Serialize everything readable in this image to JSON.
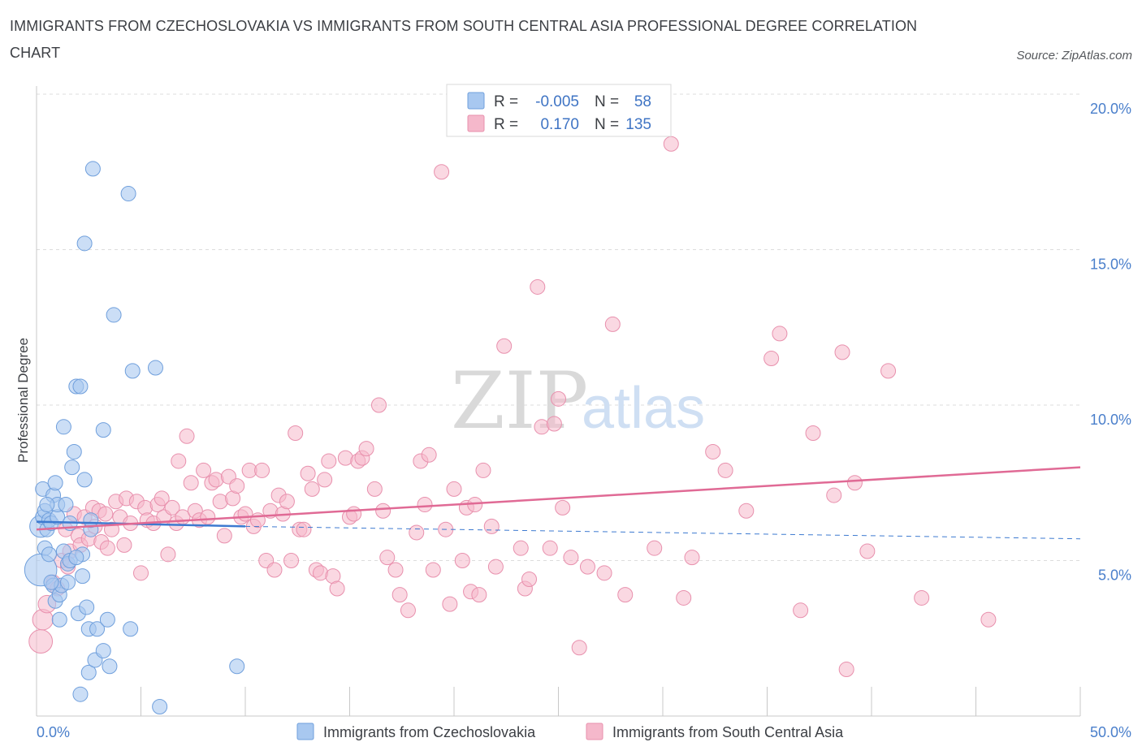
{
  "header": {
    "title": "IMMIGRANTS FROM CZECHOSLOVAKIA VS IMMIGRANTS FROM SOUTH CENTRAL ASIA PROFESSIONAL DEGREE CORRELATION CHART",
    "source": "Source: ZipAtlas.com"
  },
  "watermark": {
    "zip": "ZIP",
    "atlas": "atlas"
  },
  "legend": {
    "rows": [
      {
        "r_label": "R =",
        "r_value": "-0.005",
        "n_label": "N =",
        "n_value": "58",
        "color": "#a8c8f0",
        "stroke": "#6f9fdc"
      },
      {
        "r_label": "R =",
        "r_value": "0.170",
        "n_label": "N =",
        "n_value": "135",
        "color": "#f5b8cb",
        "stroke": "#e890ad"
      }
    ]
  },
  "colors": {
    "blue_fill": "#a8c8f0",
    "blue_stroke": "#6f9fdc",
    "blue_line": "#3d7ad0",
    "pink_fill": "#f5b8cb",
    "pink_stroke": "#e890ad",
    "pink_line": "#e06a95",
    "grid": "#dcdcdc",
    "tick_label": "#4a7fcb"
  },
  "chart_data": {
    "type": "scatter",
    "title": "IMMIGRANTS FROM CZECHOSLOVAKIA VS IMMIGRANTS FROM SOUTH CENTRAL ASIA PROFESSIONAL DEGREE CORRELATION CHART",
    "xlabel": "",
    "ylabel": "Professional Degree",
    "xlim": [
      0,
      50
    ],
    "ylim": [
      0,
      20
    ],
    "x_tick_labels": [
      {
        "value": 0,
        "label": "0.0%"
      },
      {
        "value": 50,
        "label": "50.0%"
      }
    ],
    "x_minor_ticks": [
      5,
      10,
      15,
      20,
      25,
      30,
      35,
      40,
      45,
      50
    ],
    "y_ticks": [
      {
        "value": 5,
        "label": "5.0%"
      },
      {
        "value": 10,
        "label": "10.0%"
      },
      {
        "value": 15,
        "label": "15.0%"
      },
      {
        "value": 20,
        "label": "20.0%"
      }
    ],
    "grid": true,
    "legend_position": "top-center",
    "series": [
      {
        "name": "Immigrants from Czechoslovakia",
        "color": "#a8c8f0",
        "trend": {
          "x": [
            0,
            10
          ],
          "y": [
            6.25,
            6.1
          ],
          "dashed_to": [
            50,
            5.7
          ]
        },
        "points": [
          [
            0.2,
            4.7,
            2.2
          ],
          [
            0.2,
            6.1,
            1.5
          ],
          [
            0.3,
            6.4,
            1
          ],
          [
            0.3,
            7.3,
            1
          ],
          [
            0.4,
            6.6,
            1
          ],
          [
            0.4,
            5.4,
            1
          ],
          [
            0.5,
            6.0,
            1
          ],
          [
            0.6,
            6.3,
            1
          ],
          [
            0.6,
            5.2,
            1
          ],
          [
            0.7,
            6.2,
            1
          ],
          [
            0.8,
            7.1,
            1
          ],
          [
            0.8,
            4.2,
            1
          ],
          [
            0.9,
            7.5,
            1
          ],
          [
            0.9,
            3.7,
            1
          ],
          [
            1.0,
            6.4,
            1
          ],
          [
            1.0,
            6.8,
            1
          ],
          [
            1.1,
            3.1,
            1
          ],
          [
            1.1,
            3.9,
            1
          ],
          [
            1.2,
            4.2,
            1
          ],
          [
            1.3,
            5.3,
            1
          ],
          [
            1.3,
            9.3,
            1
          ],
          [
            1.4,
            6.8,
            1
          ],
          [
            1.5,
            4.9,
            1
          ],
          [
            1.5,
            4.3,
            1
          ],
          [
            1.6,
            5.0,
            1
          ],
          [
            1.7,
            8.0,
            1
          ],
          [
            1.8,
            8.5,
            1
          ],
          [
            1.9,
            10.6,
            1
          ],
          [
            2.0,
            3.3,
            1
          ],
          [
            2.1,
            0.7,
            1
          ],
          [
            2.1,
            10.6,
            1
          ],
          [
            2.2,
            5.2,
            1
          ],
          [
            2.2,
            4.5,
            1
          ],
          [
            2.3,
            15.2,
            1
          ],
          [
            2.3,
            7.6,
            1
          ],
          [
            2.4,
            3.5,
            1
          ],
          [
            2.5,
            1.4,
            1
          ],
          [
            2.5,
            2.8,
            1
          ],
          [
            2.6,
            6.0,
            1
          ],
          [
            2.6,
            6.3,
            1
          ],
          [
            2.7,
            17.6,
            1
          ],
          [
            2.8,
            1.8,
            1
          ],
          [
            2.9,
            2.8,
            1
          ],
          [
            3.2,
            9.2,
            1
          ],
          [
            3.2,
            2.1,
            1
          ],
          [
            3.4,
            3.1,
            1
          ],
          [
            3.5,
            1.6,
            1
          ],
          [
            3.7,
            12.9,
            1
          ],
          [
            4.4,
            16.8,
            1
          ],
          [
            4.5,
            2.8,
            1
          ],
          [
            4.6,
            11.1,
            1
          ],
          [
            5.7,
            11.2,
            1
          ],
          [
            5.9,
            0.3,
            1
          ],
          [
            9.6,
            1.6,
            1
          ],
          [
            0.5,
            6.8,
            1
          ],
          [
            0.7,
            4.3,
            1
          ],
          [
            1.6,
            6.2,
            1
          ],
          [
            1.9,
            5.1,
            1
          ]
        ]
      },
      {
        "name": "Immigrants from South Central Asia",
        "color": "#f5b8cb",
        "trend": {
          "x": [
            0,
            50
          ],
          "y": [
            6.0,
            8.0
          ]
        },
        "points": [
          [
            0.2,
            2.4,
            1.6
          ],
          [
            0.3,
            3.1,
            1.4
          ],
          [
            0.5,
            3.6,
            1.2
          ],
          [
            0.8,
            4.3,
            1
          ],
          [
            1.0,
            4.1,
            1
          ],
          [
            1.2,
            5.0,
            1
          ],
          [
            1.4,
            6.0,
            1
          ],
          [
            1.5,
            4.8,
            1
          ],
          [
            1.6,
            5.3,
            1
          ],
          [
            1.8,
            6.5,
            1
          ],
          [
            2.0,
            5.8,
            1
          ],
          [
            2.1,
            5.5,
            1
          ],
          [
            2.3,
            6.4,
            1
          ],
          [
            2.5,
            5.7,
            1
          ],
          [
            2.7,
            6.7,
            1
          ],
          [
            2.8,
            6.1,
            1
          ],
          [
            3.0,
            6.6,
            1
          ],
          [
            3.1,
            5.6,
            1
          ],
          [
            3.3,
            6.5,
            1
          ],
          [
            3.4,
            5.4,
            1
          ],
          [
            3.6,
            6.0,
            1
          ],
          [
            3.8,
            6.9,
            1
          ],
          [
            4.0,
            6.4,
            1
          ],
          [
            4.2,
            5.5,
            1
          ],
          [
            4.3,
            7.0,
            1
          ],
          [
            4.5,
            6.2,
            1
          ],
          [
            4.8,
            6.9,
            1
          ],
          [
            5.0,
            4.6,
            1
          ],
          [
            5.2,
            6.7,
            1
          ],
          [
            5.3,
            6.3,
            1
          ],
          [
            5.6,
            6.2,
            1
          ],
          [
            5.8,
            6.8,
            1
          ],
          [
            6.0,
            7.0,
            1
          ],
          [
            6.1,
            6.4,
            1
          ],
          [
            6.3,
            5.2,
            1
          ],
          [
            6.5,
            6.7,
            1
          ],
          [
            6.7,
            6.2,
            1
          ],
          [
            6.8,
            8.2,
            1
          ],
          [
            7.0,
            6.4,
            1
          ],
          [
            7.2,
            9.0,
            1
          ],
          [
            7.4,
            7.5,
            1
          ],
          [
            7.6,
            6.6,
            1
          ],
          [
            7.8,
            6.3,
            1
          ],
          [
            8.0,
            7.9,
            1
          ],
          [
            8.2,
            6.4,
            1
          ],
          [
            8.4,
            7.5,
            1
          ],
          [
            8.6,
            7.6,
            1
          ],
          [
            8.8,
            6.9,
            1
          ],
          [
            9.0,
            5.8,
            1
          ],
          [
            9.2,
            7.7,
            1
          ],
          [
            9.4,
            7.0,
            1
          ],
          [
            9.6,
            7.4,
            1
          ],
          [
            9.8,
            6.4,
            1
          ],
          [
            10.0,
            6.5,
            1
          ],
          [
            10.2,
            7.9,
            1
          ],
          [
            10.4,
            6.1,
            1
          ],
          [
            10.6,
            6.3,
            1
          ],
          [
            10.8,
            7.9,
            1
          ],
          [
            11.0,
            5.0,
            1
          ],
          [
            11.2,
            6.6,
            1
          ],
          [
            11.4,
            4.7,
            1
          ],
          [
            11.6,
            7.1,
            1
          ],
          [
            11.8,
            6.5,
            1
          ],
          [
            12.0,
            6.9,
            1
          ],
          [
            12.2,
            5.0,
            1
          ],
          [
            12.4,
            9.1,
            1
          ],
          [
            12.6,
            6.0,
            1
          ],
          [
            12.8,
            6.0,
            1
          ],
          [
            13.0,
            7.8,
            1
          ],
          [
            13.2,
            7.3,
            1
          ],
          [
            13.4,
            4.7,
            1
          ],
          [
            13.6,
            4.6,
            1
          ],
          [
            13.8,
            7.6,
            1
          ],
          [
            14.0,
            8.2,
            1
          ],
          [
            14.2,
            4.5,
            1
          ],
          [
            14.4,
            4.1,
            1
          ],
          [
            14.8,
            8.3,
            1
          ],
          [
            15.0,
            6.4,
            1
          ],
          [
            15.2,
            6.5,
            1
          ],
          [
            15.4,
            8.2,
            1
          ],
          [
            15.6,
            8.3,
            1
          ],
          [
            15.8,
            8.6,
            1
          ],
          [
            16.2,
            7.3,
            1
          ],
          [
            16.4,
            10.0,
            1
          ],
          [
            16.6,
            6.6,
            1
          ],
          [
            16.8,
            5.1,
            1
          ],
          [
            17.2,
            4.7,
            1
          ],
          [
            17.4,
            3.9,
            1
          ],
          [
            17.8,
            3.4,
            1
          ],
          [
            18.2,
            5.9,
            1
          ],
          [
            18.4,
            8.2,
            1
          ],
          [
            18.6,
            6.8,
            1
          ],
          [
            18.8,
            8.4,
            1
          ],
          [
            19.0,
            4.7,
            1
          ],
          [
            19.4,
            17.5,
            1
          ],
          [
            19.6,
            6.0,
            1
          ],
          [
            19.8,
            3.6,
            1
          ],
          [
            20.0,
            7.3,
            1
          ],
          [
            20.4,
            5.0,
            1
          ],
          [
            20.6,
            6.7,
            1
          ],
          [
            20.8,
            4.0,
            1
          ],
          [
            21.0,
            6.8,
            1
          ],
          [
            21.2,
            3.9,
            1
          ],
          [
            21.4,
            7.9,
            1
          ],
          [
            21.8,
            6.1,
            1
          ],
          [
            22.0,
            4.8,
            1
          ],
          [
            22.4,
            11.9,
            1
          ],
          [
            23.2,
            5.4,
            1
          ],
          [
            23.4,
            4.1,
            1
          ],
          [
            23.6,
            4.4,
            1
          ],
          [
            24.0,
            13.8,
            1
          ],
          [
            24.2,
            9.3,
            1
          ],
          [
            24.6,
            5.4,
            1
          ],
          [
            24.8,
            9.4,
            1
          ],
          [
            25.0,
            10.2,
            1
          ],
          [
            25.2,
            6.7,
            1
          ],
          [
            25.6,
            5.1,
            1
          ],
          [
            26.0,
            2.2,
            1
          ],
          [
            26.4,
            4.8,
            1
          ],
          [
            27.2,
            4.6,
            1
          ],
          [
            27.6,
            12.6,
            1
          ],
          [
            28.2,
            3.9,
            1
          ],
          [
            31.0,
            3.8,
            1
          ],
          [
            31.4,
            5.1,
            1
          ],
          [
            32.4,
            8.5,
            1
          ],
          [
            35.2,
            11.5,
            1
          ],
          [
            35.6,
            12.3,
            1
          ],
          [
            36.6,
            3.4,
            1
          ],
          [
            37.2,
            9.1,
            1
          ],
          [
            38.2,
            7.1,
            1
          ],
          [
            38.8,
            1.5,
            1
          ],
          [
            38.6,
            11.7,
            1
          ],
          [
            39.2,
            7.5,
            1
          ],
          [
            40.8,
            11.1,
            1
          ],
          [
            42.4,
            3.8,
            1
          ],
          [
            45.6,
            3.1,
            1
          ],
          [
            30.4,
            18.4,
            1
          ],
          [
            29.6,
            5.4,
            1
          ],
          [
            33.0,
            7.9,
            1
          ],
          [
            34.0,
            6.6,
            1
          ],
          [
            39.8,
            5.3,
            1
          ]
        ]
      }
    ]
  },
  "bottom_legend": {
    "items": [
      {
        "label": "Immigrants from Czechoslovakia",
        "color": "#a8c8f0",
        "stroke": "#6f9fdc"
      },
      {
        "label": "Immigrants from South Central Asia",
        "color": "#f5b8cb",
        "stroke": "#e890ad"
      }
    ]
  }
}
